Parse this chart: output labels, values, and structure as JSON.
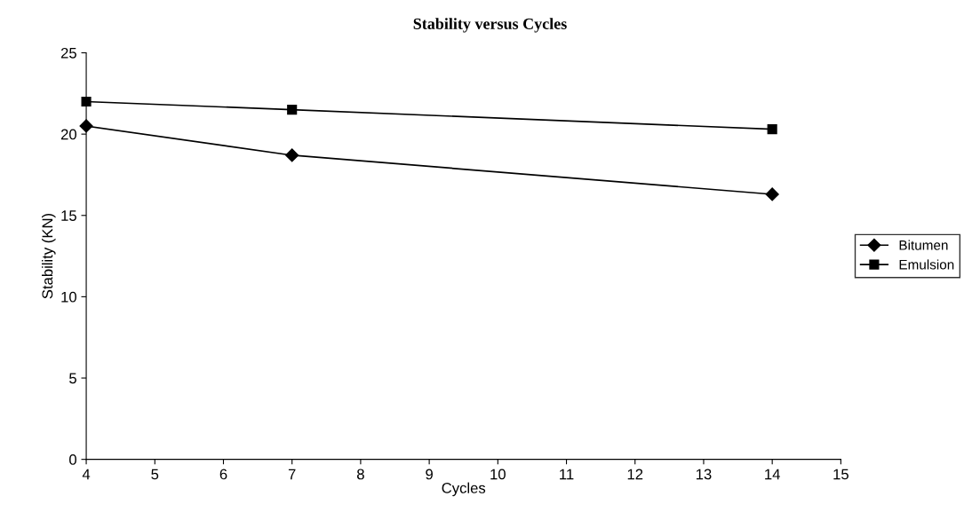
{
  "chart_data": {
    "type": "line",
    "title": "Stability versus Cycles",
    "xlabel": "Cycles",
    "ylabel": "Stability (KN)",
    "x": [
      4,
      7,
      14
    ],
    "series": [
      {
        "name": "Bitumen",
        "color": "#000000",
        "values": [
          20.5,
          18.7,
          16.3
        ],
        "marker": "diamond"
      },
      {
        "name": "Emulsion",
        "color": "#000000",
        "values": [
          22.0,
          21.5,
          20.3
        ],
        "marker": "square"
      }
    ],
    "xlim": [
      4,
      15
    ],
    "xticks": [
      4,
      5,
      6,
      7,
      8,
      9,
      10,
      11,
      12,
      13,
      14,
      15
    ],
    "ylim": [
      0,
      25
    ],
    "yticks": [
      0,
      5,
      10,
      15,
      20,
      25
    ],
    "grid": false,
    "legend": "right",
    "line_style": "solid"
  }
}
